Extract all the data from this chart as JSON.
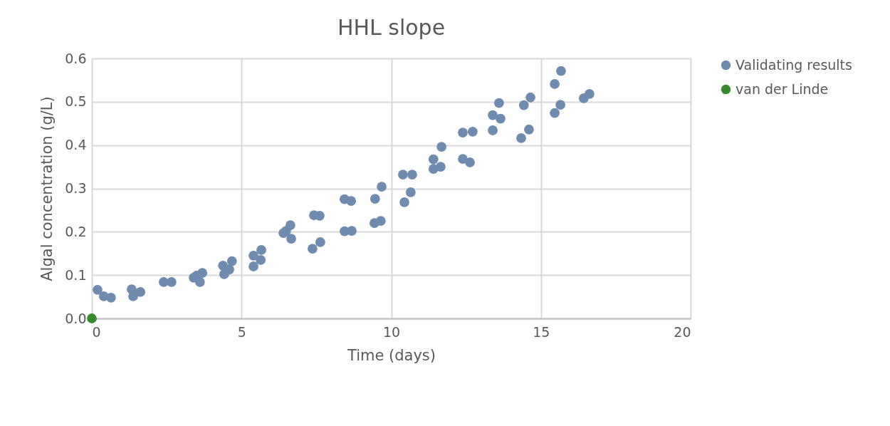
{
  "chart_data": {
    "type": "scatter",
    "title": "HHL slope",
    "xlabel": "Time (days)",
    "ylabel": "Algal concentration (g/L)",
    "xlim": [
      0,
      20
    ],
    "xticks": [
      0,
      5,
      10,
      15,
      20
    ],
    "ylim": [
      0,
      0.6
    ],
    "yticks": [
      {
        "value": 0,
        "label": "0.0"
      },
      0.1,
      0.2,
      0.3,
      0.4,
      0.5,
      0.6
    ],
    "grid": true,
    "legend": "right",
    "marker": "circle",
    "series": [
      {
        "name": "Validating results",
        "color": "#6f8bb0",
        "x": [
          0.19,
          0.4,
          0.64,
          1.33,
          1.38,
          1.62,
          2.4,
          2.66,
          3.4,
          3.5,
          3.61,
          3.69,
          4.38,
          4.42,
          4.59,
          4.68,
          5.4,
          5.4,
          5.64,
          5.66,
          6.4,
          6.49,
          6.63,
          6.66,
          7.37,
          7.42,
          7.61,
          7.63,
          8.44,
          8.66,
          8.44,
          8.68,
          9.46,
          9.44,
          9.65,
          9.68,
          10.39,
          10.44,
          10.65,
          10.7,
          11.41,
          11.41,
          11.65,
          11.68,
          12.39,
          12.39,
          12.63,
          12.72,
          13.39,
          13.39,
          13.6,
          13.65,
          14.34,
          14.43,
          14.6,
          14.65,
          15.46,
          15.46,
          15.65,
          15.67,
          16.43,
          16.62
        ],
        "values": [
          0.066,
          0.051,
          0.048,
          0.067,
          0.051,
          0.061,
          0.084,
          0.084,
          0.094,
          0.099,
          0.084,
          0.105,
          0.122,
          0.102,
          0.113,
          0.132,
          0.145,
          0.12,
          0.135,
          0.158,
          0.197,
          0.202,
          0.215,
          0.184,
          0.161,
          0.238,
          0.237,
          0.176,
          0.275,
          0.271,
          0.201,
          0.202,
          0.276,
          0.22,
          0.225,
          0.304,
          0.332,
          0.268,
          0.291,
          0.332,
          0.367,
          0.345,
          0.35,
          0.396,
          0.429,
          0.368,
          0.36,
          0.431,
          0.469,
          0.434,
          0.497,
          0.461,
          0.416,
          0.492,
          0.436,
          0.51,
          0.541,
          0.474,
          0.493,
          0.571,
          0.508,
          0.518
        ]
      },
      {
        "name": "van der Linde",
        "color": "#358a2c",
        "x": [
          0
        ],
        "values": [
          0
        ]
      }
    ]
  }
}
